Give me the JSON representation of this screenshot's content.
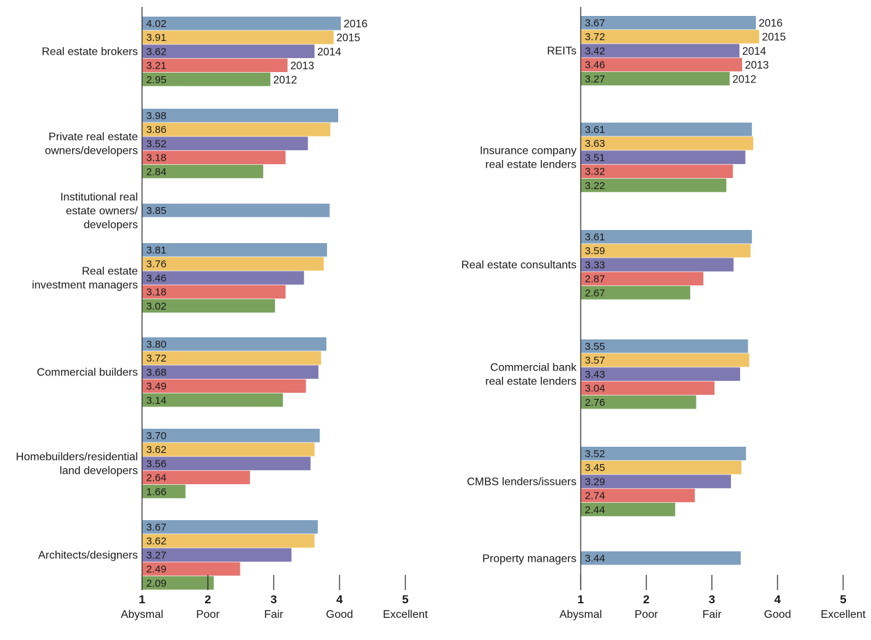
{
  "chart_data": {
    "type": "bar",
    "orientation": "horizontal",
    "colors": {
      "2016": "#7f9fbe",
      "2015": "#f0c466",
      "2014": "#7f79b1",
      "2013": "#e5746e",
      "2012": "#7aa25c"
    },
    "x_axis": {
      "range": [
        1,
        5
      ],
      "ticks": [
        {
          "value": 1,
          "label": "1",
          "text": "Abysmal"
        },
        {
          "value": 2,
          "label": "2",
          "text": "Poor"
        },
        {
          "value": 3,
          "label": "3",
          "text": "Fair"
        },
        {
          "value": 4,
          "label": "4",
          "text": "Good"
        },
        {
          "value": 5,
          "label": "5",
          "text": "Excellent"
        }
      ]
    },
    "panels": [
      {
        "groups": [
          {
            "label": [
              "Real estate brokers"
            ],
            "show_years": true,
            "bars": [
              {
                "year": "2016",
                "value": 4.02
              },
              {
                "year": "2015",
                "value": 3.91
              },
              {
                "year": "2014",
                "value": 3.62
              },
              {
                "year": "2013",
                "value": 3.21
              },
              {
                "year": "2012",
                "value": 2.95
              }
            ]
          },
          {
            "label": [
              "Private real estate",
              "owners/developers"
            ],
            "show_years": false,
            "bars": [
              {
                "year": "2016",
                "value": 3.98
              },
              {
                "year": "2015",
                "value": 3.86
              },
              {
                "year": "2014",
                "value": 3.52
              },
              {
                "year": "2013",
                "value": 3.18
              },
              {
                "year": "2012",
                "value": 2.84
              }
            ]
          },
          {
            "label": [
              "Institutional real",
              "estate owners/",
              "developers"
            ],
            "show_years": false,
            "bars": [
              {
                "year": "2016",
                "value": 3.85
              }
            ]
          },
          {
            "label": [
              "Real estate",
              "investment managers"
            ],
            "show_years": false,
            "bars": [
              {
                "year": "2016",
                "value": 3.81
              },
              {
                "year": "2015",
                "value": 3.76
              },
              {
                "year": "2014",
                "value": 3.46
              },
              {
                "year": "2013",
                "value": 3.18
              },
              {
                "year": "2012",
                "value": 3.02
              }
            ]
          },
          {
            "label": [
              "Commercial builders"
            ],
            "show_years": false,
            "bars": [
              {
                "year": "2016",
                "value": 3.8
              },
              {
                "year": "2015",
                "value": 3.72
              },
              {
                "year": "2014",
                "value": 3.68
              },
              {
                "year": "2013",
                "value": 3.49
              },
              {
                "year": "2012",
                "value": 3.14
              }
            ]
          },
          {
            "label": [
              "Homebuilders/residential",
              "land developers"
            ],
            "show_years": false,
            "bars": [
              {
                "year": "2016",
                "value": 3.7
              },
              {
                "year": "2015",
                "value": 3.62
              },
              {
                "year": "2014",
                "value": 3.56
              },
              {
                "year": "2013",
                "value": 2.64
              },
              {
                "year": "2012",
                "value": 1.66
              }
            ]
          },
          {
            "label": [
              "Architects/designers"
            ],
            "show_years": false,
            "bars": [
              {
                "year": "2016",
                "value": 3.67
              },
              {
                "year": "2015",
                "value": 3.62
              },
              {
                "year": "2014",
                "value": 3.27
              },
              {
                "year": "2013",
                "value": 2.49
              },
              {
                "year": "2012",
                "value": 2.09
              }
            ]
          }
        ]
      },
      {
        "groups": [
          {
            "label": [
              "REITs"
            ],
            "show_years": true,
            "bars": [
              {
                "year": "2016",
                "value": 3.67
              },
              {
                "year": "2015",
                "value": 3.72
              },
              {
                "year": "2014",
                "value": 3.42
              },
              {
                "year": "2013",
                "value": 3.46
              },
              {
                "year": "2012",
                "value": 3.27
              }
            ]
          },
          {
            "label": [
              "Insurance company",
              "real estate lenders"
            ],
            "show_years": false,
            "bars": [
              {
                "year": "2016",
                "value": 3.61
              },
              {
                "year": "2015",
                "value": 3.63
              },
              {
                "year": "2014",
                "value": 3.51
              },
              {
                "year": "2013",
                "value": 3.32
              },
              {
                "year": "2012",
                "value": 3.22
              }
            ]
          },
          {
            "label": [
              "Real estate consultants"
            ],
            "show_years": false,
            "bars": [
              {
                "year": "2016",
                "value": 3.61
              },
              {
                "year": "2015",
                "value": 3.59
              },
              {
                "year": "2014",
                "value": 3.33
              },
              {
                "year": "2013",
                "value": 2.87
              },
              {
                "year": "2012",
                "value": 2.67
              }
            ]
          },
          {
            "label": [
              "Commercial bank",
              "real estate lenders"
            ],
            "show_years": false,
            "bars": [
              {
                "year": "2016",
                "value": 3.55
              },
              {
                "year": "2015",
                "value": 3.57
              },
              {
                "year": "2014",
                "value": 3.43
              },
              {
                "year": "2013",
                "value": 3.04
              },
              {
                "year": "2012",
                "value": 2.76
              }
            ]
          },
          {
            "label": [
              "CMBS lenders/issuers"
            ],
            "show_years": false,
            "bars": [
              {
                "year": "2016",
                "value": 3.52
              },
              {
                "year": "2015",
                "value": 3.45
              },
              {
                "year": "2014",
                "value": 3.29
              },
              {
                "year": "2013",
                "value": 2.74
              },
              {
                "year": "2012",
                "value": 2.44
              }
            ]
          },
          {
            "label": [
              "Property managers"
            ],
            "show_years": false,
            "bars": [
              {
                "year": "2016",
                "value": 3.44
              }
            ]
          }
        ]
      }
    ]
  }
}
